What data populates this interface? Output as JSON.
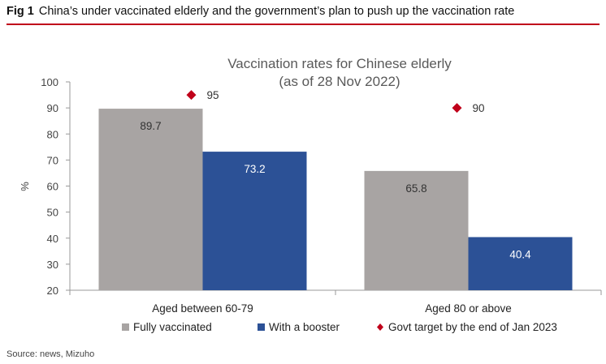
{
  "header": {
    "fig_number": "Fig 1",
    "title": "China’s under vaccinated elderly and the government’s plan to push up the vaccination rate"
  },
  "chart_data": {
    "type": "bar",
    "title": "Vaccination rates for Chinese elderly",
    "subtitle": "(as of 28 Nov 2022)",
    "ylabel": "%",
    "xlabel": "",
    "ylim": [
      20,
      100
    ],
    "yticks": [
      20,
      30,
      40,
      50,
      60,
      70,
      80,
      90,
      100
    ],
    "categories": [
      "Aged between 60-79",
      "Aged 80 or above"
    ],
    "series": [
      {
        "name": "Fully vaccinated",
        "type": "bar",
        "color": "#a8a4a3",
        "label_color": "#333333",
        "values": [
          89.7,
          65.8
        ]
      },
      {
        "name": "With a booster",
        "type": "bar",
        "color": "#2c5196",
        "label_color": "#ffffff",
        "values": [
          73.2,
          40.4
        ]
      },
      {
        "name": "Govt target by the end of Jan 2023",
        "type": "marker",
        "marker": "diamond",
        "color": "#c0001a",
        "label_color": "#333333",
        "values": [
          95,
          90
        ]
      }
    ],
    "legend_position": "bottom",
    "grid": false
  },
  "source": "Source: news, Mizuho"
}
